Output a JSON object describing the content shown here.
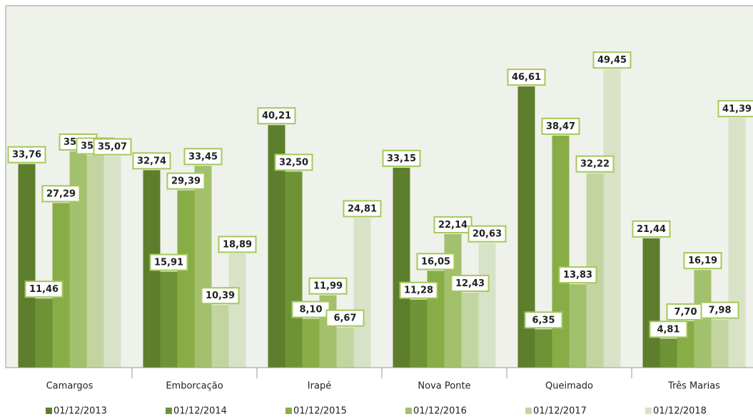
{
  "chart_data": {
    "type": "bar",
    "categories": [
      "Camargos",
      "Emborcação",
      "Irapé",
      "Nova Ponte",
      "Queimado",
      "Três Marias"
    ],
    "series": [
      {
        "name": "01/12/2013",
        "color": "#5d7e2c",
        "values": [
          33.76,
          32.74,
          40.21,
          33.15,
          46.61,
          21.44
        ],
        "value_labels": [
          "33,76",
          "32,74",
          "40,21",
          "33,15",
          "46,61",
          "21,44"
        ]
      },
      {
        "name": "01/12/2014",
        "color": "#6e9336",
        "values": [
          11.46,
          15.91,
          32.5,
          11.28,
          6.35,
          4.81
        ],
        "value_labels": [
          "11,46",
          "15,91",
          "32,50",
          "11,28",
          "6,35",
          "4,81"
        ]
      },
      {
        "name": "01/12/2015",
        "color": "#88ad46",
        "values": [
          27.29,
          29.39,
          8.1,
          16.05,
          38.47,
          7.7
        ],
        "value_labels": [
          "27,29",
          "29,39",
          "8,10",
          "16,05",
          "38,47",
          "7,70"
        ]
      },
      {
        "name": "01/12/2016",
        "color": "#a3c06c",
        "values": [
          35.86,
          33.45,
          11.99,
          22.14,
          13.83,
          16.19
        ],
        "value_labels": [
          "35,86",
          "33,45",
          "11,99",
          "22,14",
          "13,83",
          "16,19"
        ]
      },
      {
        "name": "01/12/2017",
        "color": "#c2d5a0",
        "values": [
          35.2,
          10.39,
          6.67,
          12.43,
          32.22,
          7.98
        ],
        "value_labels": [
          "35,20",
          "10,39",
          "6,67",
          "12,43",
          "32,22",
          "7,98"
        ]
      },
      {
        "name": "01/12/2018",
        "color": "#d8e2c7",
        "values": [
          35.07,
          18.89,
          24.81,
          20.63,
          49.45,
          41.39
        ],
        "value_labels": [
          "35,07",
          "18,89",
          "24,81",
          "20,63",
          "49,45",
          "41,39"
        ]
      }
    ],
    "ylim": [
      0,
      60
    ]
  }
}
